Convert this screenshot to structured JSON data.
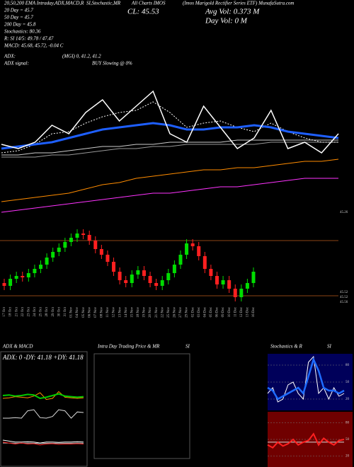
{
  "header": {
    "line1": "20,50,200 EMA Intraday,ADX,MACD,R",
    "line1b": "SI,Stochastic,MR",
    "line1c": "All Charts IMOS",
    "line1d": "(Imos Marigold Rectifier Series ETF) MunafaSutra.com",
    "ema20": "20 Day = 45.7",
    "ema50": "50 Day = 45.7",
    "ema200": "200 Day = 45.8",
    "stoch": "Stochastics: 80.36",
    "rsi": "R:  SI 14/5: 49.78 / 47.47",
    "macd": "MACD: 45.68, 45.72, -0.04  C",
    "adx": "ADX:",
    "adx_values": "(MGI) 0, 41.2, 41.2",
    "adx_signal": "ADX  signal:",
    "signal": "BUY Slowing @ 0%",
    "close": "CL: 45.53",
    "avg_vol": "Avg Vol: 0.373  M",
    "day_vol": "Day Vol: 0   M",
    "main_price_label": "45.26",
    "candle_labels": [
      "45.52",
      "45.52",
      "45.56"
    ]
  },
  "intraday": {
    "title": "Intra Day Trading Price  & MR",
    "subtitle": "SI"
  },
  "chart_data": [
    {
      "type": "line",
      "ylim": [
        0,
        100
      ],
      "series": [
        {
          "color": "#cccccc",
          "values": [
            27,
            27,
            28,
            28,
            29,
            30,
            31,
            31,
            32,
            32,
            33,
            33,
            33,
            33,
            34,
            34,
            34,
            34,
            34,
            34,
            34
          ]
        },
        {
          "color": "#999999",
          "values": [
            26,
            26,
            26,
            27,
            27,
            28,
            29,
            30,
            30,
            31,
            31,
            32,
            32,
            32,
            32,
            32,
            33,
            33,
            33,
            33,
            33
          ]
        },
        {
          "color": "#ff8c00",
          "values": [
            5,
            6,
            7,
            8,
            9,
            11,
            13,
            14,
            16,
            17,
            18,
            19,
            20,
            20,
            21,
            21,
            22,
            23,
            24,
            24,
            25
          ]
        },
        {
          "color": "#ff33ff",
          "values": [
            0,
            1,
            2,
            3,
            4,
            5,
            6,
            7,
            8,
            9,
            9,
            10,
            11,
            12,
            12,
            13,
            14,
            15,
            16,
            16,
            16
          ]
        },
        {
          "color": "#ffffff",
          "dash": true,
          "values": [
            28,
            29,
            32,
            37,
            38,
            42,
            45,
            47,
            48,
            52,
            47,
            40,
            42,
            43,
            40,
            38,
            42,
            38,
            35,
            33,
            33
          ]
        },
        {
          "color": "#1e5fff",
          "width": 3,
          "values": [
            30,
            31,
            32,
            33,
            35,
            37,
            39,
            40,
            41,
            42,
            41,
            39,
            39,
            40,
            40,
            41,
            40,
            38,
            37,
            36,
            35
          ]
        },
        {
          "color": "#ffffff",
          "width": 1.5,
          "values": [
            32,
            30,
            33,
            41,
            37,
            47,
            53,
            43,
            50,
            57,
            37,
            33,
            50,
            40,
            30,
            35,
            48,
            30,
            33,
            28,
            37
          ]
        }
      ]
    },
    {
      "type": "candlestick",
      "ylim": [
        44.5,
        50.5
      ],
      "levels": [
        49.0,
        45.1
      ],
      "up_color": "#00dd00",
      "down_color": "#ff2020",
      "categories": [
        "17 Oct",
        "18 Oct",
        "21 Oct",
        "22 Oct",
        "23 Oct",
        "24 Oct",
        "25 Oct",
        "28 Oct",
        "29 Oct",
        "30 Oct",
        "31 Oct",
        "01 Nov",
        "04 Nov",
        "05 Nov",
        "06 Nov",
        "07 Nov",
        "08 Nov",
        "11 Nov",
        "12 Nov",
        "13 Nov",
        "14 Nov",
        "15 Nov",
        "18 Nov",
        "19 Nov",
        "20 Nov",
        "21 Nov",
        "22 Nov",
        "25 Nov",
        "26 Nov",
        "27 Nov",
        "29 Nov",
        "02 Dec",
        "03 Dec",
        "04 Dec",
        "05 Dec",
        "06 Dec",
        "09 Dec",
        "10 Dec",
        "11 Dec",
        "12 Dec",
        "13 Dec",
        "16 Dec"
      ],
      "open": [
        46.0,
        45.8,
        46.3,
        46.5,
        46.4,
        46.7,
        47.0,
        47.3,
        47.8,
        48.2,
        48.5,
        48.9,
        49.2,
        49.5,
        49.4,
        49.0,
        48.4,
        48.0,
        47.5,
        46.8,
        46.2,
        46.0,
        46.6,
        46.9,
        46.5,
        46.0,
        45.8,
        46.2,
        46.7,
        47.3,
        48.0,
        48.8,
        48.6,
        47.9,
        47.0,
        46.5,
        45.9,
        46.2,
        45.6,
        45.0,
        45.6,
        46.0
      ],
      "high": [
        46.3,
        46.6,
        46.8,
        46.8,
        47.0,
        47.3,
        47.6,
        48.1,
        48.5,
        48.8,
        49.2,
        49.5,
        49.8,
        49.8,
        49.7,
        49.3,
        48.7,
        48.3,
        47.8,
        47.1,
        46.5,
        46.9,
        47.2,
        47.2,
        46.8,
        46.3,
        46.5,
        47.0,
        47.6,
        48.3,
        49.1,
        49.1,
        48.9,
        48.2,
        47.3,
        46.8,
        46.5,
        46.5,
        45.9,
        45.9,
        46.3,
        47.1
      ],
      "low": [
        45.5,
        45.5,
        46.0,
        46.1,
        46.1,
        46.4,
        46.7,
        47.0,
        47.5,
        47.9,
        48.2,
        48.6,
        48.9,
        49.1,
        48.7,
        48.1,
        47.7,
        47.2,
        46.5,
        45.9,
        45.7,
        45.7,
        46.3,
        46.2,
        45.7,
        45.5,
        45.5,
        45.9,
        46.4,
        47.0,
        47.7,
        48.3,
        47.6,
        46.7,
        46.2,
        45.6,
        45.6,
        45.3,
        44.7,
        44.7,
        45.3,
        45.7
      ],
      "close": [
        45.8,
        46.3,
        46.5,
        46.4,
        46.7,
        47.0,
        47.3,
        47.8,
        48.2,
        48.5,
        48.9,
        49.2,
        49.5,
        49.4,
        49.0,
        48.4,
        48.0,
        47.5,
        46.8,
        46.2,
        46.0,
        46.6,
        46.9,
        46.5,
        46.0,
        45.8,
        46.2,
        46.7,
        47.3,
        48.0,
        48.8,
        48.6,
        47.9,
        47.0,
        46.5,
        45.9,
        46.2,
        45.6,
        45.0,
        45.6,
        46.0,
        46.8
      ]
    },
    {
      "type": "line",
      "title": "ADX  & MACD",
      "subtitle": "ADX: 0  -DY: 41.18  +DY: 41.18",
      "ylim": [
        0,
        100
      ],
      "series": [
        {
          "color": "#ff8c00",
          "values": [
            40,
            41,
            43,
            42,
            41,
            44,
            50,
            38,
            40,
            52,
            42,
            41,
            40,
            41
          ]
        },
        {
          "color": "#00cc00",
          "width": 2,
          "values": [
            45,
            46,
            44,
            45,
            47,
            46,
            40,
            42,
            45,
            48,
            44,
            43,
            42,
            43
          ]
        },
        {
          "color": "#dddddd",
          "values": [
            5,
            5,
            6,
            5,
            18,
            20,
            6,
            5,
            8,
            20,
            18,
            5,
            16,
            15
          ]
        }
      ]
    },
    {
      "type": "line",
      "ylim": [
        -1,
        1
      ],
      "series": [
        {
          "color": "#ffffff",
          "values": [
            0.2,
            0.15,
            0.1,
            0.1,
            0.12,
            0.1,
            0.05,
            0.1,
            0.1,
            0.08,
            0.1,
            0.1,
            0.12,
            0.1
          ]
        },
        {
          "color": "#bbbbbb",
          "values": [
            0.05,
            0.05,
            0.04,
            0.04,
            0.05,
            0.04,
            0.03,
            0.04,
            0.04,
            0.04,
            0.04,
            0.04,
            0.05,
            0.04
          ]
        },
        {
          "color": "#ff2020",
          "values": [
            0.1,
            0.05,
            0.0,
            0.05,
            0.0,
            0.02,
            -0.05,
            0.0,
            0.02,
            -0.02,
            0.0,
            0.0,
            0.02,
            0.0
          ]
        }
      ]
    },
    {
      "type": "line",
      "title": "Stochastics & R",
      "subtitle": "SI",
      "ylim": [
        0,
        100
      ],
      "yticks": [
        20,
        50,
        80
      ],
      "background": "#00005a",
      "series": [
        {
          "color": "#ffffff",
          "values": [
            30,
            40,
            15,
            20,
            45,
            50,
            30,
            20,
            85,
            95,
            30,
            40,
            20,
            40,
            25,
            30
          ]
        },
        {
          "color": "#1e6bff",
          "width": 2.5,
          "values": [
            40,
            35,
            20,
            25,
            30,
            35,
            40,
            30,
            60,
            90,
            70,
            40,
            35,
            35,
            30,
            35
          ]
        }
      ]
    },
    {
      "type": "line",
      "ylim": [
        0,
        100
      ],
      "yticks": [
        20,
        50,
        80
      ],
      "background": "#700000",
      "series": [
        {
          "color": "#dddddd",
          "values": [
            45,
            45,
            45,
            45,
            45,
            45,
            45,
            45,
            45,
            45,
            45,
            45,
            45,
            45,
            45,
            45
          ]
        },
        {
          "color": "#ff2020",
          "width": 2,
          "values": [
            40,
            35,
            45,
            38,
            42,
            50,
            40,
            45,
            48,
            60,
            40,
            52,
            45,
            40,
            48,
            50
          ]
        }
      ]
    }
  ]
}
